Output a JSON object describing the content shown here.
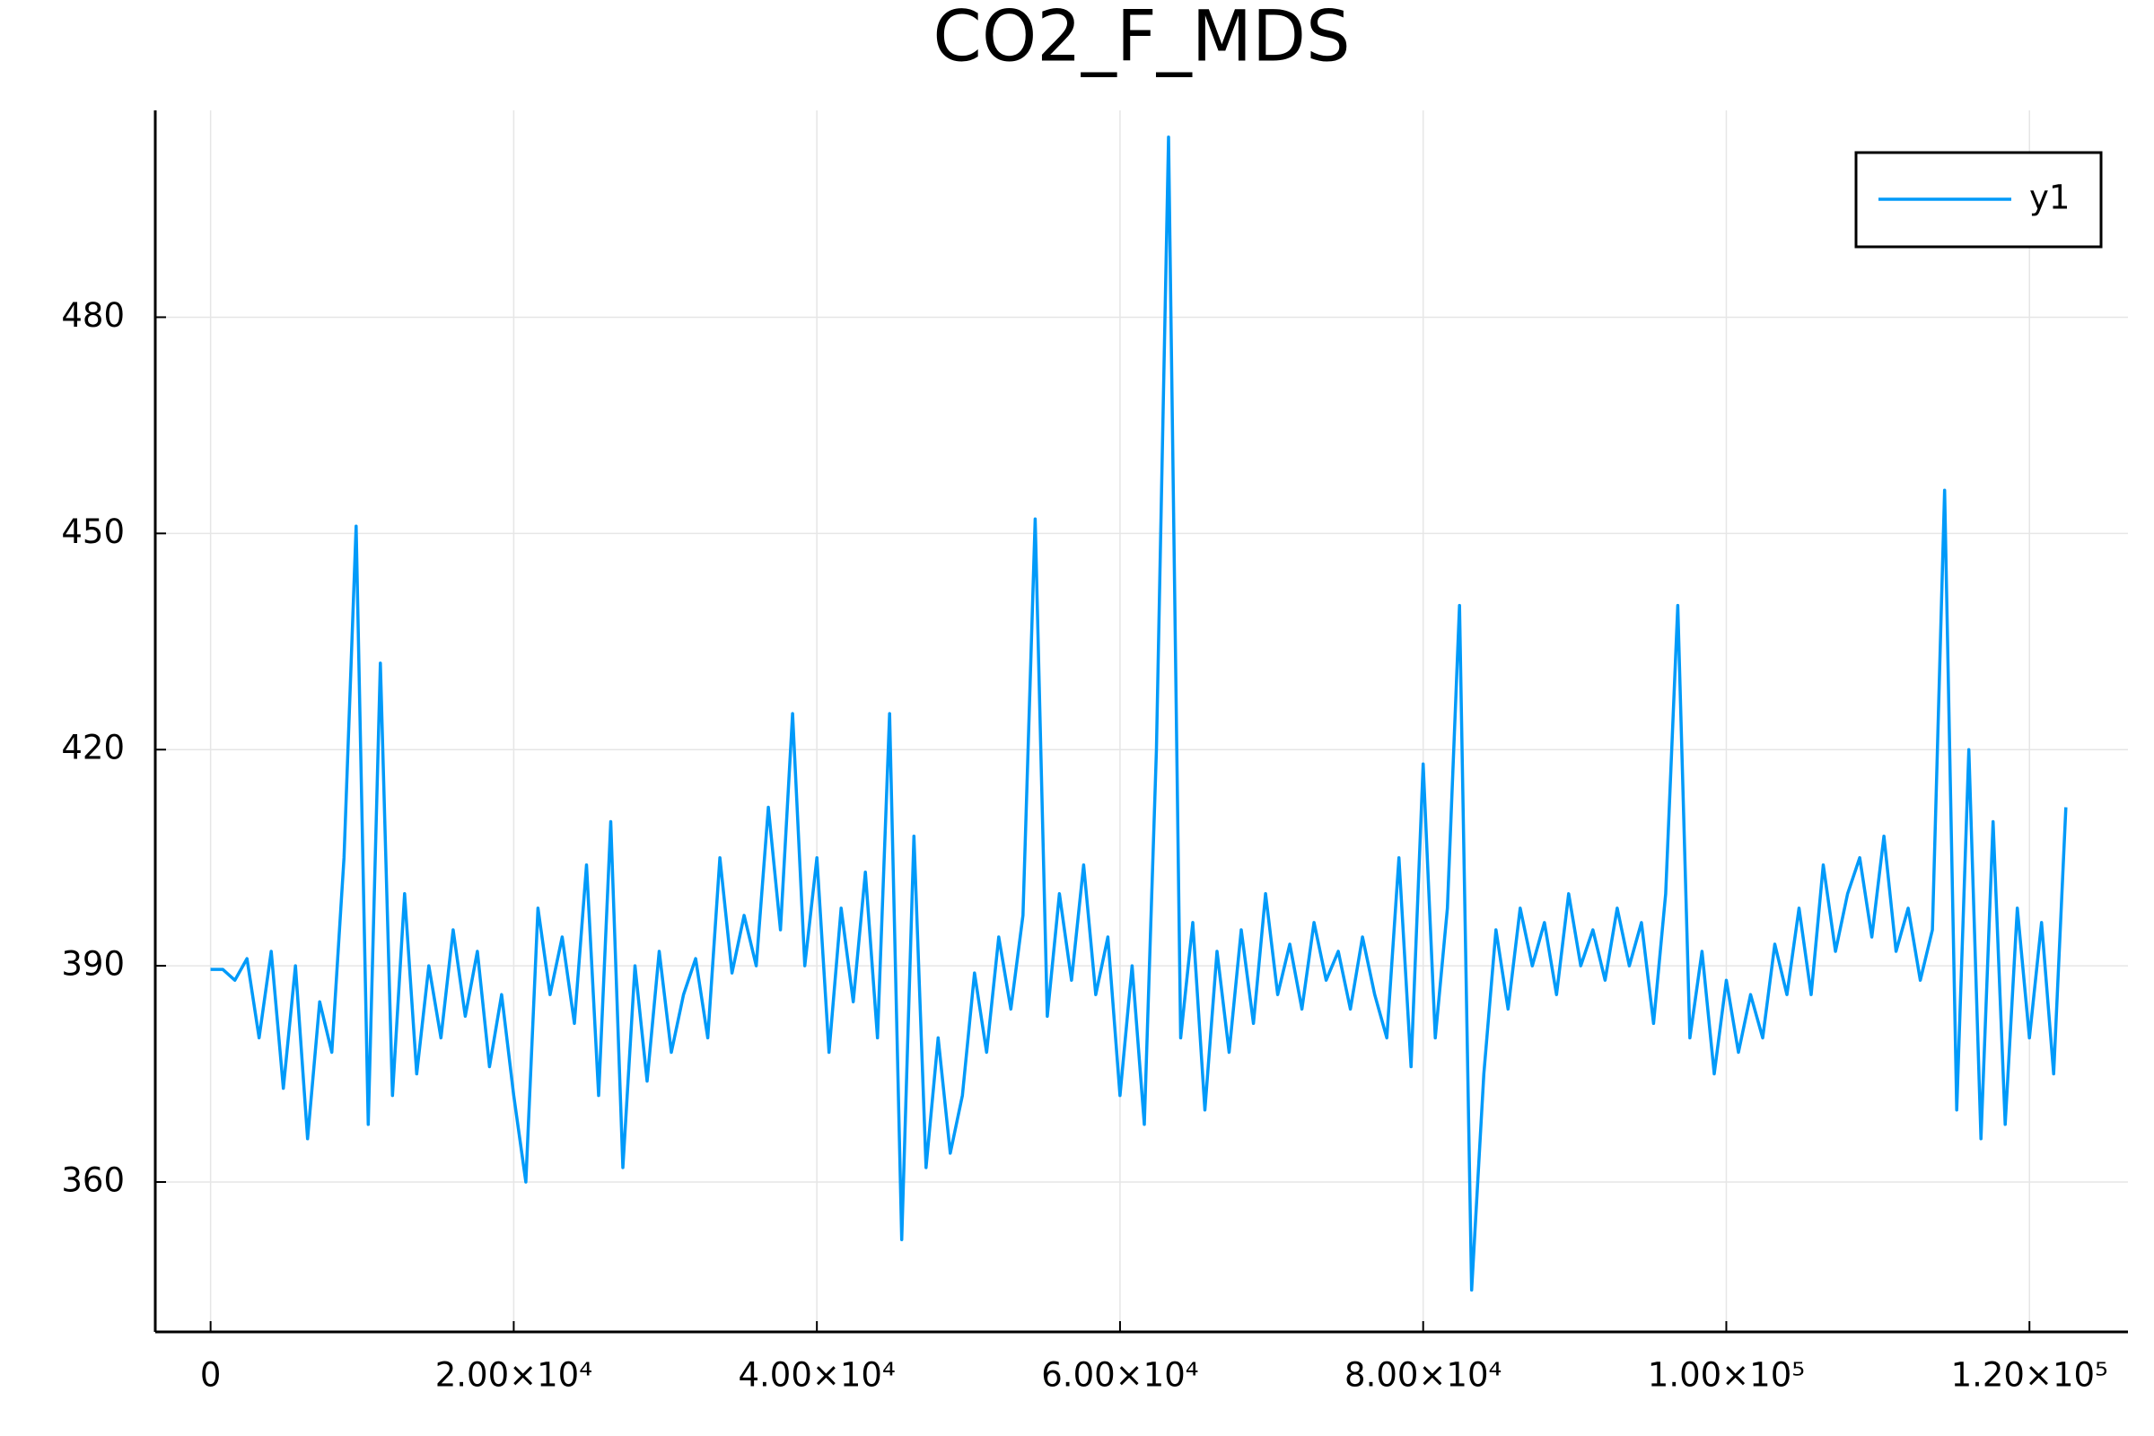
{
  "chart_data": {
    "type": "line",
    "title": "CO2_F_MDS",
    "x": [
      0,
      800,
      1600,
      2400,
      3200,
      4000,
      4800,
      5600,
      6400,
      7200,
      8000,
      8800,
      9600,
      10400,
      11200,
      12000,
      12800,
      13600,
      14400,
      15200,
      16000,
      16800,
      17600,
      18400,
      19200,
      20000,
      20800,
      21600,
      22400,
      23200,
      24000,
      24800,
      25600,
      26400,
      27200,
      28000,
      28800,
      29600,
      30400,
      31200,
      32000,
      32800,
      33600,
      34400,
      35200,
      36000,
      36800,
      37600,
      38400,
      39200,
      40000,
      40800,
      41600,
      42400,
      43200,
      44000,
      44800,
      45600,
      46400,
      47200,
      48000,
      48800,
      49600,
      50400,
      51200,
      52000,
      52800,
      53600,
      54400,
      55200,
      56000,
      56800,
      57600,
      58400,
      59200,
      60000,
      60800,
      61600,
      62400,
      63200,
      64000,
      64800,
      65600,
      66400,
      67200,
      68000,
      68800,
      69600,
      70400,
      71200,
      72000,
      72800,
      73600,
      74400,
      75200,
      76000,
      76800,
      77600,
      78400,
      79200,
      80000,
      80800,
      81600,
      82400,
      83200,
      84000,
      84800,
      85600,
      86400,
      87200,
      88000,
      88800,
      89600,
      90400,
      91200,
      92000,
      92800,
      93600,
      94400,
      95200,
      96000,
      96800,
      97600,
      98400,
      99200,
      100000,
      100800,
      101600,
      102400,
      103200,
      104000,
      104800,
      105600,
      106400,
      107200,
      108000,
      108800,
      109600,
      110400,
      111200,
      112000,
      112800,
      113600,
      114400,
      115200,
      116000,
      116800,
      117600,
      118400,
      119200,
      120000,
      120800,
      121600,
      122400
    ],
    "series": [
      {
        "name": "y1",
        "color": "#009af9",
        "values": [
          389.5,
          389.5,
          388,
          391,
          380,
          392,
          373,
          390,
          366,
          385,
          378,
          405,
          451,
          368,
          432,
          372,
          400,
          375,
          390,
          380,
          395,
          383,
          392,
          376,
          386,
          372,
          360,
          398,
          386,
          394,
          382,
          404,
          372,
          410,
          362,
          390,
          374,
          392,
          378,
          386,
          391,
          380,
          405,
          389,
          397,
          390,
          412,
          395,
          425,
          390,
          405,
          378,
          398,
          385,
          403,
          380,
          425,
          352,
          408,
          362,
          380,
          364,
          372,
          389,
          378,
          394,
          384,
          397,
          452,
          383,
          400,
          388,
          404,
          386,
          394,
          372,
          390,
          368,
          420,
          505,
          380,
          396,
          370,
          392,
          378,
          395,
          382,
          400,
          386,
          393,
          384,
          396,
          388,
          392,
          384,
          394,
          386,
          380,
          405,
          376,
          418,
          380,
          398,
          440,
          345,
          375,
          395,
          384,
          398,
          390,
          396,
          386,
          400,
          390,
          395,
          388,
          398,
          390,
          396,
          382,
          400,
          440,
          380,
          392,
          375,
          388,
          378,
          386,
          380,
          393,
          386,
          398,
          386,
          404,
          392,
          400,
          405,
          394,
          408,
          392,
          398,
          388,
          395,
          456,
          370,
          420,
          366,
          410,
          368,
          398,
          380,
          396,
          375,
          412
        ]
      }
    ],
    "xlim": [
      -3650,
      126500
    ],
    "ylim": [
      339.2,
      508.7
    ],
    "xticks": [
      0,
      {
        "value": 20000,
        "label": "2.00×10⁴"
      },
      {
        "value": 40000,
        "label": "4.00×10⁴"
      },
      {
        "value": 60000,
        "label": "6.00×10⁴"
      },
      {
        "value": 80000,
        "label": "8.00×10⁴"
      },
      {
        "value": 100000,
        "label": "1.00×10⁵"
      },
      {
        "value": 120000,
        "label": "1.20×10⁵"
      }
    ],
    "yticks": [
      360,
      390,
      420,
      450,
      480
    ],
    "grid": true,
    "legend": "top-right"
  }
}
